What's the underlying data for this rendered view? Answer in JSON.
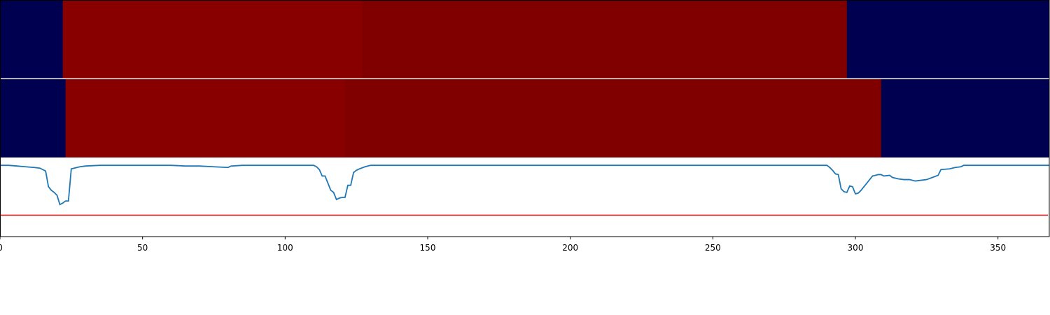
{
  "chart_data": {
    "type": "heatmap",
    "title": "",
    "xlabel": "",
    "ylabel": "",
    "xlim": [
      0,
      368
    ],
    "x_ticks": [
      "0",
      "50",
      "100",
      "150",
      "200",
      "250",
      "300",
      "350"
    ],
    "x_tick_values": [
      0,
      50,
      100,
      150,
      200,
      250,
      300,
      350
    ],
    "heatmap_rows": [
      {
        "segments": [
          {
            "start": 0,
            "end": 22,
            "color": "#000050"
          },
          {
            "start": 22,
            "end": 127,
            "color": "#880000"
          },
          {
            "start": 127,
            "end": 297,
            "color": "#800000"
          },
          {
            "start": 297,
            "end": 368,
            "color": "#000050"
          }
        ]
      },
      {
        "segments": [
          {
            "start": 0,
            "end": 23,
            "color": "#000050"
          },
          {
            "start": 23,
            "end": 121,
            "color": "#880000"
          },
          {
            "start": 121,
            "end": 309,
            "color": "#800000"
          },
          {
            "start": 309,
            "end": 368,
            "color": "#000050"
          }
        ]
      }
    ],
    "line": {
      "color": "#1f77b4",
      "ylim": [
        -1.0,
        0.1
      ],
      "points": [
        [
          0,
          0
        ],
        [
          3,
          0
        ],
        [
          6,
          -0.01
        ],
        [
          9,
          -0.02
        ],
        [
          12,
          -0.03
        ],
        [
          14,
          -0.04
        ],
        [
          16,
          -0.08
        ],
        [
          17,
          -0.3
        ],
        [
          18,
          -0.35
        ],
        [
          19,
          -0.38
        ],
        [
          20,
          -0.42
        ],
        [
          21,
          -0.55
        ],
        [
          22,
          -0.53
        ],
        [
          23,
          -0.5
        ],
        [
          24,
          -0.5
        ],
        [
          25,
          -0.05
        ],
        [
          26,
          -0.04
        ],
        [
          28,
          -0.02
        ],
        [
          30,
          -0.01
        ],
        [
          35,
          0
        ],
        [
          60,
          0
        ],
        [
          65,
          -0.01
        ],
        [
          70,
          -0.01
        ],
        [
          75,
          -0.02
        ],
        [
          80,
          -0.03
        ],
        [
          81,
          -0.01
        ],
        [
          85,
          0
        ],
        [
          100,
          0
        ],
        [
          110,
          0
        ],
        [
          111,
          -0.02
        ],
        [
          112,
          -0.06
        ],
        [
          113,
          -0.15
        ],
        [
          114,
          -0.15
        ],
        [
          115,
          -0.25
        ],
        [
          116,
          -0.35
        ],
        [
          117,
          -0.38
        ],
        [
          118,
          -0.48
        ],
        [
          119,
          -0.46
        ],
        [
          120,
          -0.45
        ],
        [
          121,
          -0.45
        ],
        [
          122,
          -0.28
        ],
        [
          123,
          -0.28
        ],
        [
          124,
          -0.1
        ],
        [
          125,
          -0.07
        ],
        [
          126,
          -0.05
        ],
        [
          128,
          -0.02
        ],
        [
          130,
          0
        ],
        [
          200,
          0
        ],
        [
          290,
          0
        ],
        [
          291,
          -0.03
        ],
        [
          292,
          -0.07
        ],
        [
          293,
          -0.12
        ],
        [
          294,
          -0.13
        ],
        [
          295,
          -0.33
        ],
        [
          296,
          -0.37
        ],
        [
          297,
          -0.38
        ],
        [
          298,
          -0.29
        ],
        [
          299,
          -0.3
        ],
        [
          300,
          -0.4
        ],
        [
          301,
          -0.39
        ],
        [
          302,
          -0.35
        ],
        [
          303,
          -0.3
        ],
        [
          304,
          -0.25
        ],
        [
          305,
          -0.2
        ],
        [
          306,
          -0.15
        ],
        [
          307,
          -0.14
        ],
        [
          308,
          -0.13
        ],
        [
          309,
          -0.13
        ],
        [
          310,
          -0.15
        ],
        [
          312,
          -0.14
        ],
        [
          313,
          -0.17
        ],
        [
          315,
          -0.19
        ],
        [
          317,
          -0.2
        ],
        [
          319,
          -0.2
        ],
        [
          321,
          -0.22
        ],
        [
          323,
          -0.21
        ],
        [
          325,
          -0.2
        ],
        [
          327,
          -0.17
        ],
        [
          329,
          -0.14
        ],
        [
          330,
          -0.06
        ],
        [
          333,
          -0.05
        ],
        [
          335,
          -0.03
        ],
        [
          337,
          -0.02
        ],
        [
          338,
          0
        ],
        [
          345,
          0
        ],
        [
          360,
          0
        ],
        [
          368,
          0
        ]
      ]
    },
    "threshold": {
      "value": -0.7,
      "color": "#d62728"
    }
  }
}
